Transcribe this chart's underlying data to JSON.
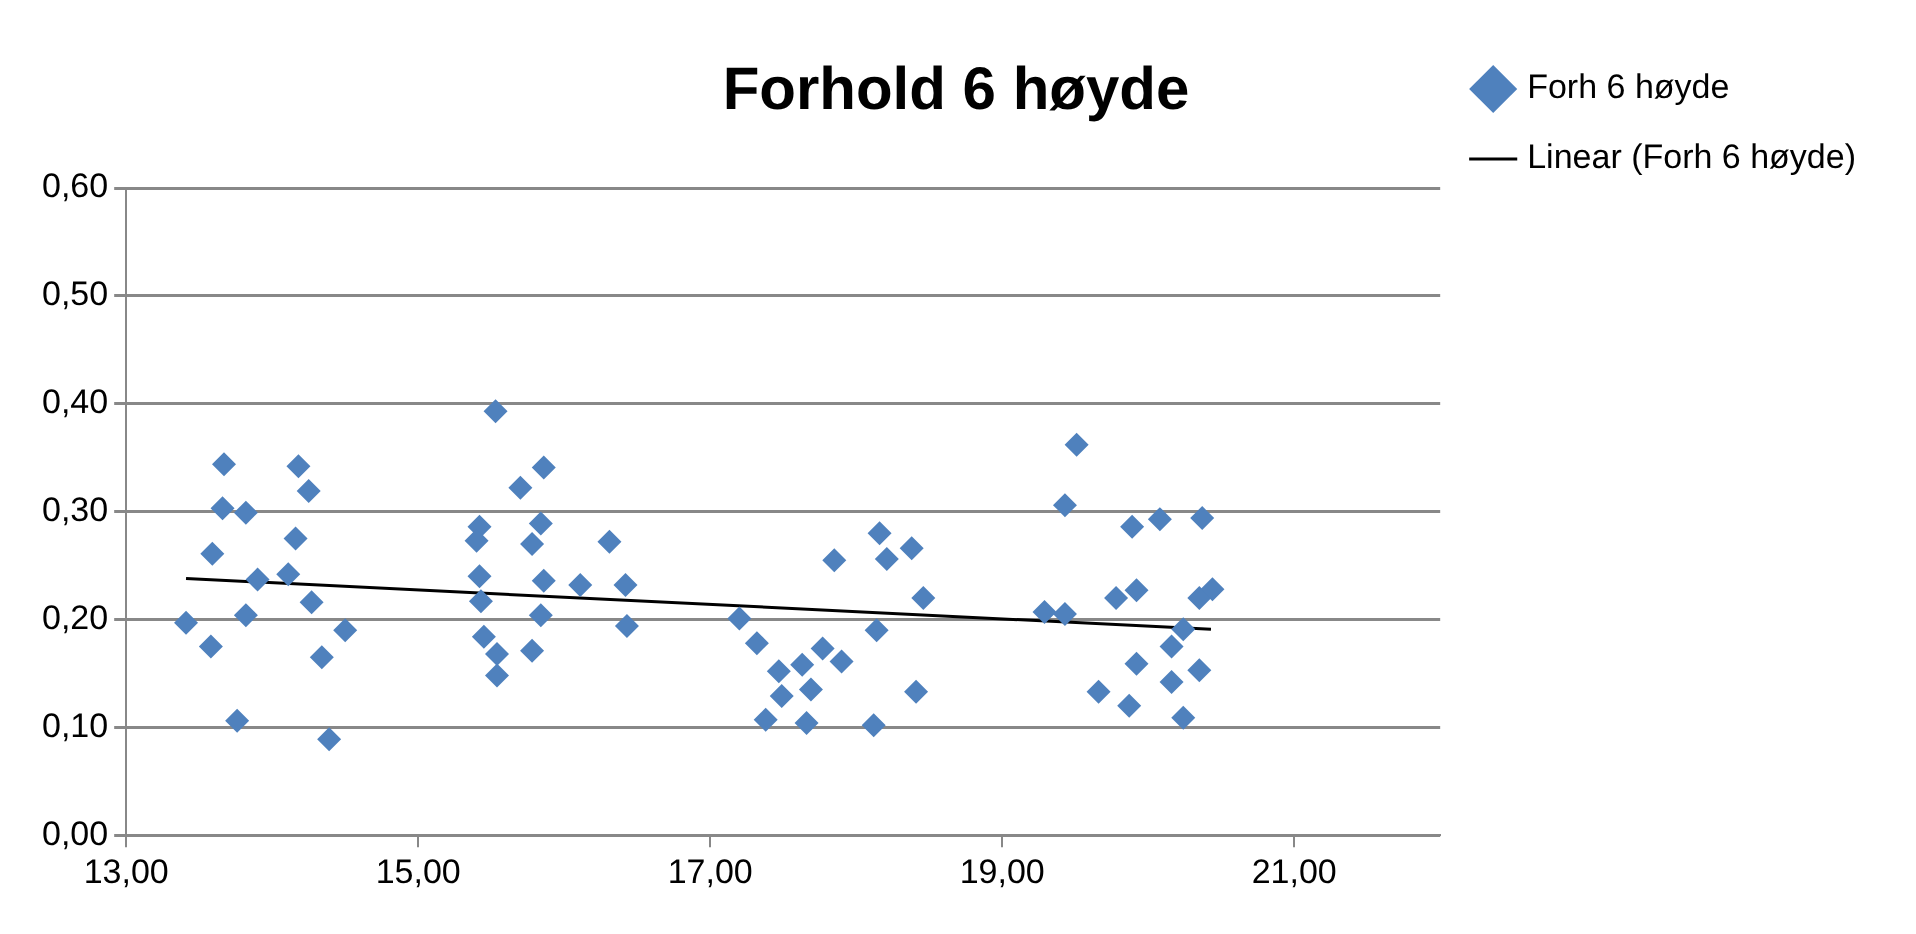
{
  "chart_data": {
    "type": "scatter",
    "title": "Forhold 6 høyde",
    "legend": "top right",
    "grid": "y",
    "marker": "diamond",
    "xlim": [
      13,
      22
    ],
    "ylim": [
      0,
      0.6
    ],
    "xticks": [
      {
        "value": 13,
        "label": "13,00"
      },
      {
        "value": 15,
        "label": "15,00"
      },
      {
        "value": 17,
        "label": "17,00"
      },
      {
        "value": 19,
        "label": "19,00"
      },
      {
        "value": 21,
        "label": "21,00"
      }
    ],
    "yticks": [
      {
        "value": 0,
        "label": "0,00"
      },
      {
        "value": 0.1,
        "label": "0,10"
      },
      {
        "value": 0.2,
        "label": "0,20"
      },
      {
        "value": 0.3,
        "label": "0,30"
      },
      {
        "value": 0.4,
        "label": "0,40"
      },
      {
        "value": 0.5,
        "label": "0,50"
      },
      {
        "value": 0.6,
        "label": "0,60"
      }
    ],
    "series": [
      {
        "name": "Forh 6 høyde",
        "color": "#4f81bd",
        "x": [
          13.67,
          14.18,
          14.25,
          13.66,
          13.82,
          14.16,
          13.59,
          13.9,
          14.11,
          14.27,
          13.82,
          13.41,
          13.58,
          14.5,
          14.34,
          13.76,
          14.39,
          15.53,
          15.86,
          15.7,
          15.84,
          15.42,
          15.4,
          15.78,
          16.31,
          15.42,
          15.86,
          16.11,
          16.42,
          15.43,
          15.84,
          16.43,
          15.45,
          15.54,
          15.78,
          15.54,
          17.2,
          17.32,
          17.85,
          18.16,
          18.21,
          18.38,
          18.46,
          18.14,
          17.77,
          17.9,
          17.47,
          17.63,
          17.49,
          17.69,
          17.38,
          17.66,
          18.12,
          18.41,
          19.51,
          19.43,
          19.89,
          20.08,
          20.37,
          19.29,
          19.43,
          19.78,
          19.92,
          20.35,
          20.44,
          20.24,
          20.16,
          19.92,
          20.35,
          20.16,
          19.66,
          19.87,
          20.24
        ],
        "values": [
          0.344,
          0.342,
          0.319,
          0.303,
          0.299,
          0.275,
          0.261,
          0.237,
          0.242,
          0.216,
          0.204,
          0.197,
          0.175,
          0.19,
          0.165,
          0.106,
          0.089,
          0.393,
          0.341,
          0.322,
          0.289,
          0.286,
          0.273,
          0.27,
          0.272,
          0.24,
          0.236,
          0.232,
          0.232,
          0.217,
          0.204,
          0.194,
          0.184,
          0.168,
          0.171,
          0.148,
          0.201,
          0.178,
          0.255,
          0.28,
          0.256,
          0.266,
          0.22,
          0.19,
          0.173,
          0.161,
          0.152,
          0.158,
          0.129,
          0.135,
          0.107,
          0.104,
          0.102,
          0.133,
          0.362,
          0.306,
          0.286,
          0.293,
          0.294,
          0.207,
          0.205,
          0.22,
          0.227,
          0.22,
          0.228,
          0.191,
          0.175,
          0.159,
          0.153,
          0.142,
          0.133,
          0.12,
          0.109
        ]
      },
      {
        "name": "Linear (Forh 6 høyde)",
        "type": "line",
        "marker": "none",
        "color": "#000000",
        "x": [
          13.41,
          20.43
        ],
        "values": [
          0.238,
          0.191
        ]
      }
    ]
  }
}
